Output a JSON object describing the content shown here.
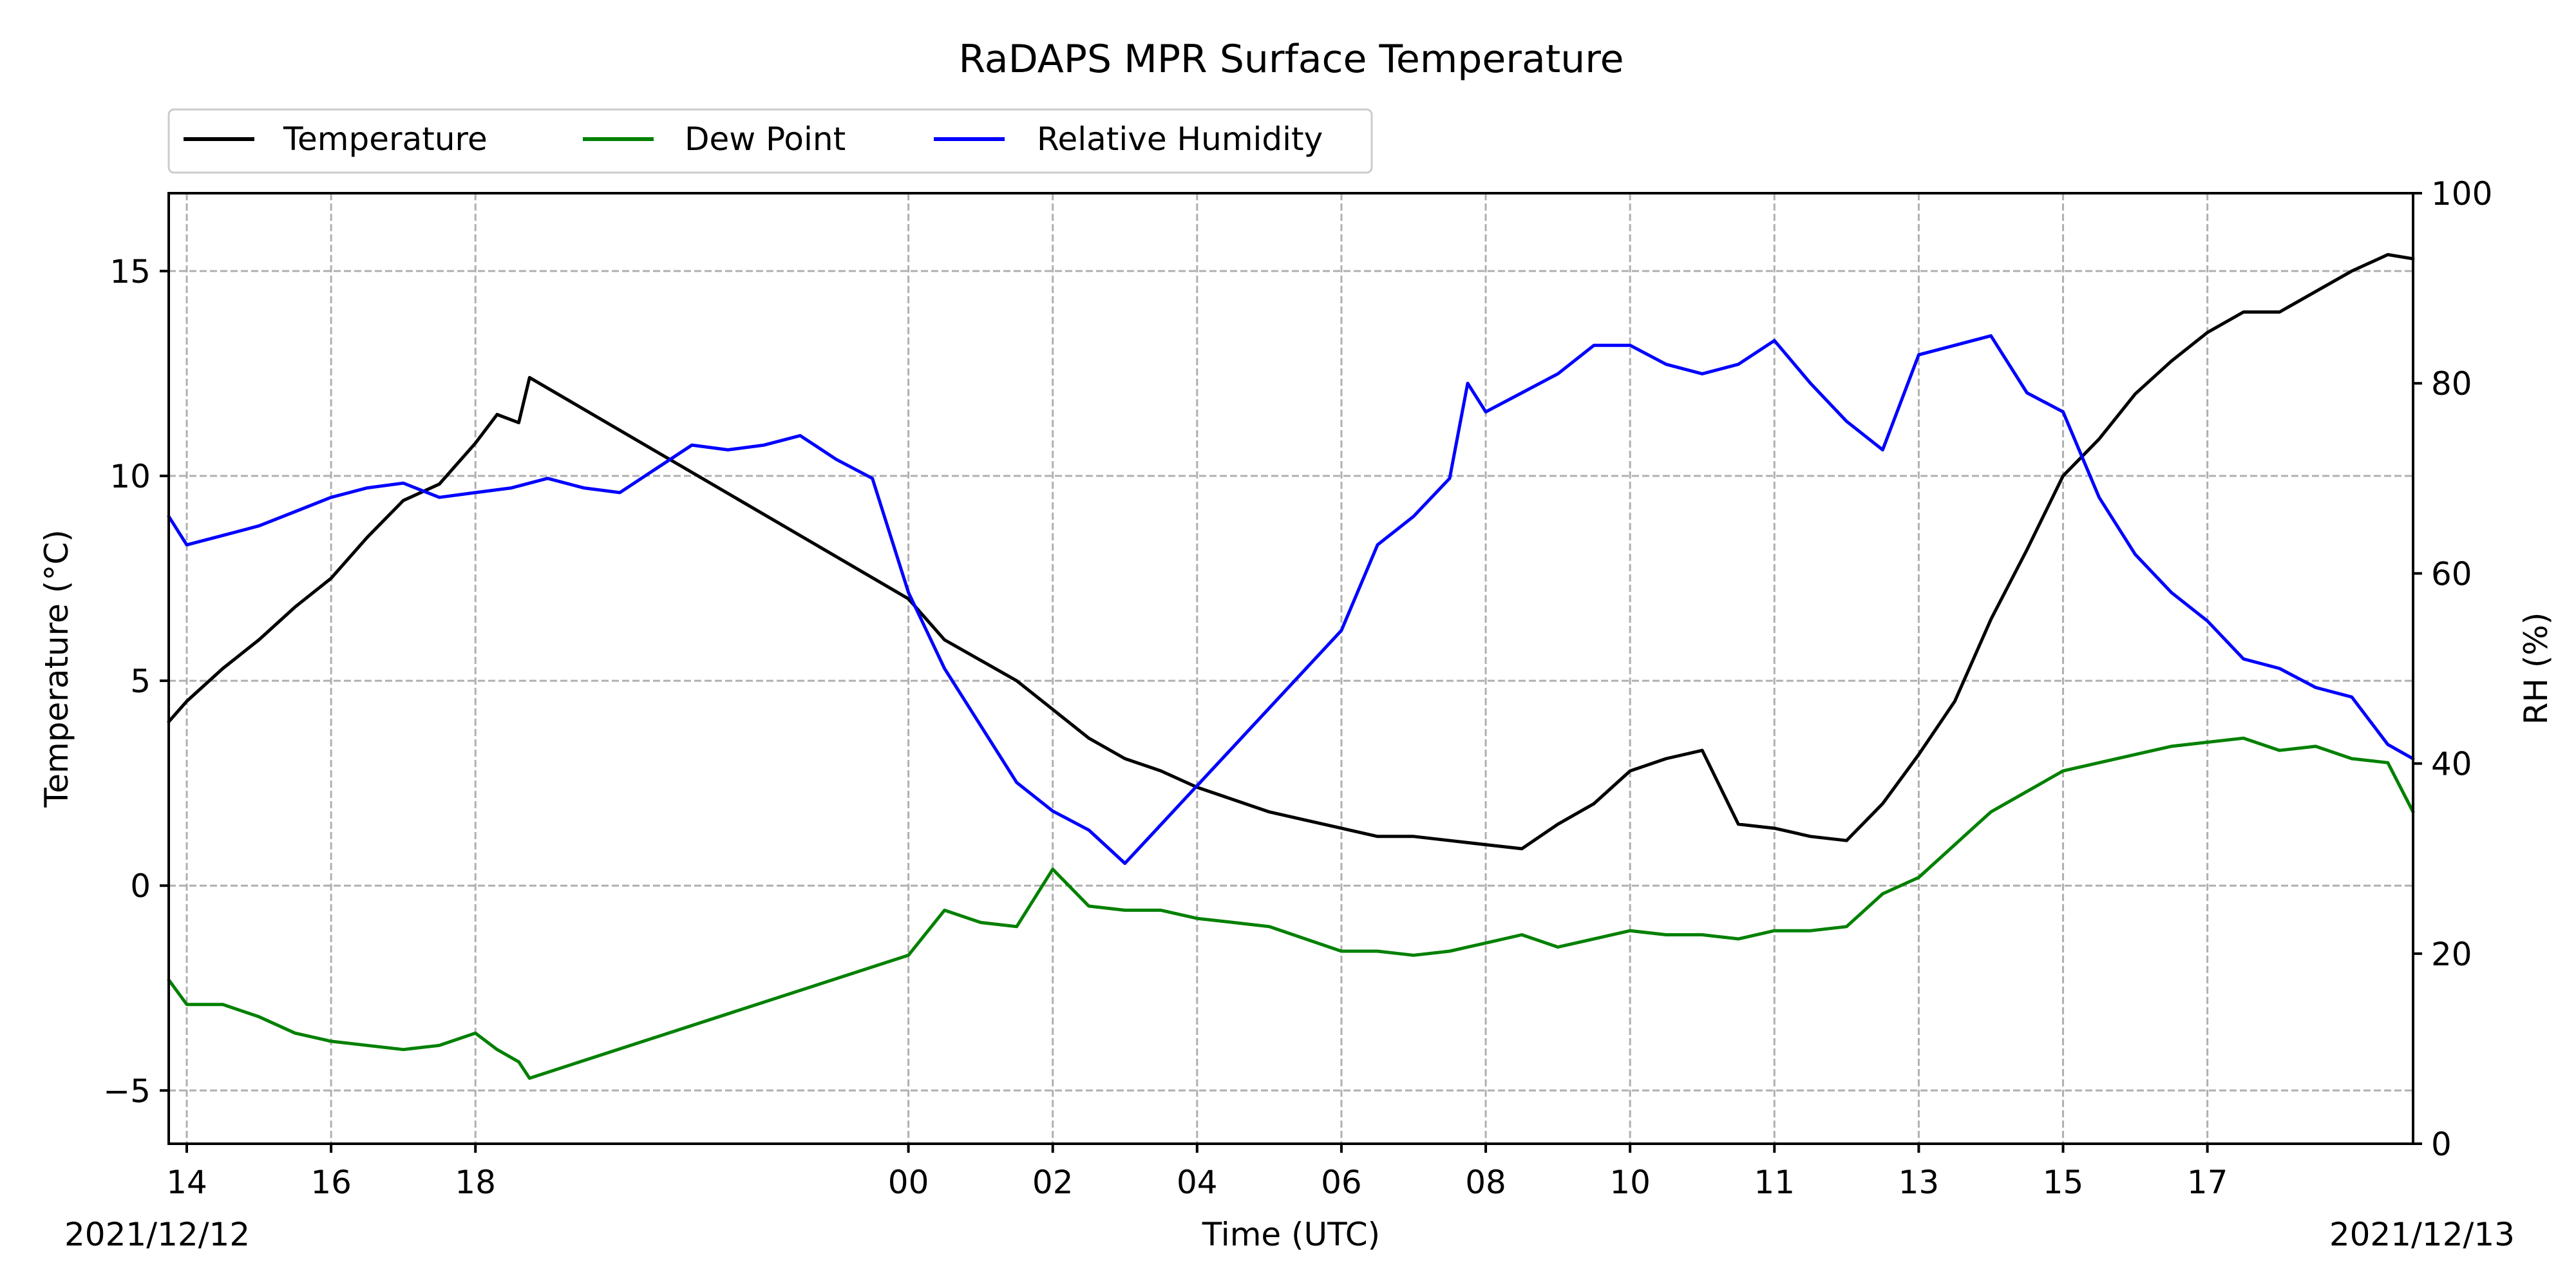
{
  "chart_data": {
    "type": "line",
    "title": "RaDAPS MPR Surface Temperature",
    "xlabel": "Time (UTC)",
    "ylabel_left": "Temperature ($^\\circ$C)",
    "ylabel_left_display": "Temperature (°C)",
    "ylabel_right": "RH (%)",
    "date_left": "2021/12/12",
    "date_right": "2021/12/13",
    "grid": true,
    "legend_placement": "top-left-outside",
    "xlim": [
      13.75,
      44.85
    ],
    "ylim_left": [
      -6.3,
      16.9
    ],
    "ylim_right": [
      0,
      100
    ],
    "x_ticks": [
      {
        "x": 14,
        "label": "14"
      },
      {
        "x": 16,
        "label": "16"
      },
      {
        "x": 18,
        "label": "18"
      },
      {
        "x": 24,
        "label": "00"
      },
      {
        "x": 26,
        "label": "02"
      },
      {
        "x": 28,
        "label": "04"
      },
      {
        "x": 30,
        "label": "06"
      },
      {
        "x": 32,
        "label": "08"
      },
      {
        "x": 34,
        "label": "10"
      },
      {
        "x": 36,
        "label": "11"
      },
      {
        "x": 38,
        "label": "13"
      },
      {
        "x": 40,
        "label": "15"
      },
      {
        "x": 42,
        "label": "17"
      }
    ],
    "y_ticks_left": [
      {
        "y": -5,
        "label": "−5"
      },
      {
        "y": 0,
        "label": "0"
      },
      {
        "y": 5,
        "label": "5"
      },
      {
        "y": 10,
        "label": "10"
      },
      {
        "y": 15,
        "label": "15"
      }
    ],
    "y_ticks_right": [
      {
        "y": 0,
        "label": "0"
      },
      {
        "y": 20,
        "label": "20"
      },
      {
        "y": 40,
        "label": "40"
      },
      {
        "y": 60,
        "label": "60"
      },
      {
        "y": 80,
        "label": "80"
      },
      {
        "y": 100,
        "label": "100"
      }
    ],
    "series": [
      {
        "name": "Temperature",
        "axis": "left",
        "color": "#000000",
        "x": [
          13.75,
          14.0,
          14.5,
          15.0,
          15.5,
          16.0,
          16.5,
          17.0,
          17.5,
          18.0,
          18.3,
          18.6,
          18.75,
          24.0,
          24.5,
          25.0,
          25.5,
          26.0,
          26.5,
          27.0,
          27.5,
          28.0,
          28.5,
          29.0,
          29.5,
          30.0,
          30.5,
          31.0,
          31.5,
          32.0,
          32.5,
          33.0,
          33.5,
          34.0,
          34.5,
          35.0,
          35.5,
          36.0,
          36.5,
          37.0,
          37.5,
          38.0,
          38.5,
          39.0,
          39.5,
          40.0,
          40.5,
          41.0,
          41.5,
          42.0,
          42.5,
          43.0,
          43.5,
          44.0,
          44.5,
          44.85
        ],
        "y": [
          4.0,
          4.5,
          5.3,
          6.0,
          6.8,
          7.5,
          8.5,
          9.4,
          9.8,
          10.8,
          11.5,
          11.3,
          12.4,
          7.0,
          6.0,
          5.5,
          5.0,
          4.3,
          3.6,
          3.1,
          2.8,
          2.4,
          2.1,
          1.8,
          1.6,
          1.4,
          1.2,
          1.2,
          1.1,
          1.0,
          0.9,
          1.5,
          2.0,
          2.8,
          3.1,
          3.3,
          1.5,
          1.4,
          1.2,
          1.1,
          2.0,
          3.2,
          4.5,
          6.5,
          8.2,
          10.0,
          10.9,
          12.0,
          12.8,
          13.5,
          14.0,
          14.0,
          14.5,
          15.0,
          15.4,
          15.3
        ]
      },
      {
        "name": "Dew Point",
        "axis": "left",
        "color": "#008000",
        "x": [
          13.75,
          14.0,
          14.5,
          15.0,
          15.5,
          16.0,
          16.5,
          17.0,
          17.5,
          18.0,
          18.3,
          18.6,
          18.75,
          24.0,
          24.5,
          25.0,
          25.5,
          26.0,
          26.5,
          27.0,
          27.5,
          28.0,
          28.5,
          29.0,
          29.5,
          30.0,
          30.5,
          31.0,
          31.5,
          32.0,
          32.5,
          33.0,
          33.5,
          34.0,
          34.5,
          35.0,
          35.5,
          36.0,
          36.5,
          37.0,
          37.5,
          38.0,
          38.5,
          39.0,
          39.5,
          40.0,
          40.5,
          41.0,
          41.5,
          42.0,
          42.5,
          43.0,
          43.5,
          44.0,
          44.5,
          44.85
        ],
        "y": [
          -2.3,
          -2.9,
          -2.9,
          -3.2,
          -3.6,
          -3.8,
          -3.9,
          -4.0,
          -3.9,
          -3.6,
          -4.0,
          -4.3,
          -4.7,
          -1.7,
          -0.6,
          -0.9,
          -1.0,
          0.4,
          -0.5,
          -0.6,
          -0.6,
          -0.8,
          -0.9,
          -1.0,
          -1.3,
          -1.6,
          -1.6,
          -1.7,
          -1.6,
          -1.4,
          -1.2,
          -1.5,
          -1.3,
          -1.1,
          -1.2,
          -1.2,
          -1.3,
          -1.1,
          -1.1,
          -1.0,
          -0.2,
          0.2,
          1.0,
          1.8,
          2.3,
          2.8,
          3.0,
          3.2,
          3.4,
          3.5,
          3.6,
          3.3,
          3.4,
          3.1,
          3.0,
          1.8
        ]
      },
      {
        "name": "Relative Humidity",
        "axis": "right",
        "color": "#0000ff",
        "x": [
          13.75,
          14.0,
          14.5,
          15.0,
          15.5,
          16.0,
          16.5,
          17.0,
          17.5,
          18.0,
          18.5,
          19.0,
          19.5,
          20.0,
          20.5,
          21.0,
          21.5,
          22.0,
          22.5,
          23.0,
          23.5,
          24.0,
          24.5,
          25.0,
          25.5,
          26.0,
          26.5,
          27.0,
          30.0,
          30.5,
          31.0,
          31.5,
          31.75,
          32.0,
          32.5,
          33.0,
          33.5,
          34.0,
          34.5,
          35.0,
          35.5,
          36.0,
          36.5,
          37.0,
          37.5,
          38.0,
          38.5,
          39.0,
          39.5,
          40.0,
          40.5,
          41.0,
          41.5,
          42.0,
          42.5,
          43.0,
          43.5,
          44.0,
          44.5,
          44.85
        ],
        "y": [
          66.0,
          63.0,
          64.0,
          65.0,
          66.5,
          68.0,
          69.0,
          69.5,
          68.0,
          68.5,
          69.0,
          70.0,
          69.0,
          68.5,
          71.0,
          73.5,
          73.0,
          73.5,
          74.5,
          72.0,
          70.0,
          58.0,
          50.0,
          44.0,
          38.0,
          35.0,
          33.0,
          29.5,
          54.0,
          63.0,
          66.0,
          70.0,
          80.0,
          77.0,
          79.0,
          81.0,
          84.0,
          84.0,
          82.0,
          81.0,
          82.0,
          84.5,
          80.0,
          76.0,
          73.0,
          83.0,
          84.0,
          85.0,
          79.0,
          77.0,
          68.0,
          62.0,
          58.0,
          55.0,
          51.0,
          50.0,
          48.0,
          47.0,
          42.0,
          40.5
        ]
      }
    ]
  }
}
